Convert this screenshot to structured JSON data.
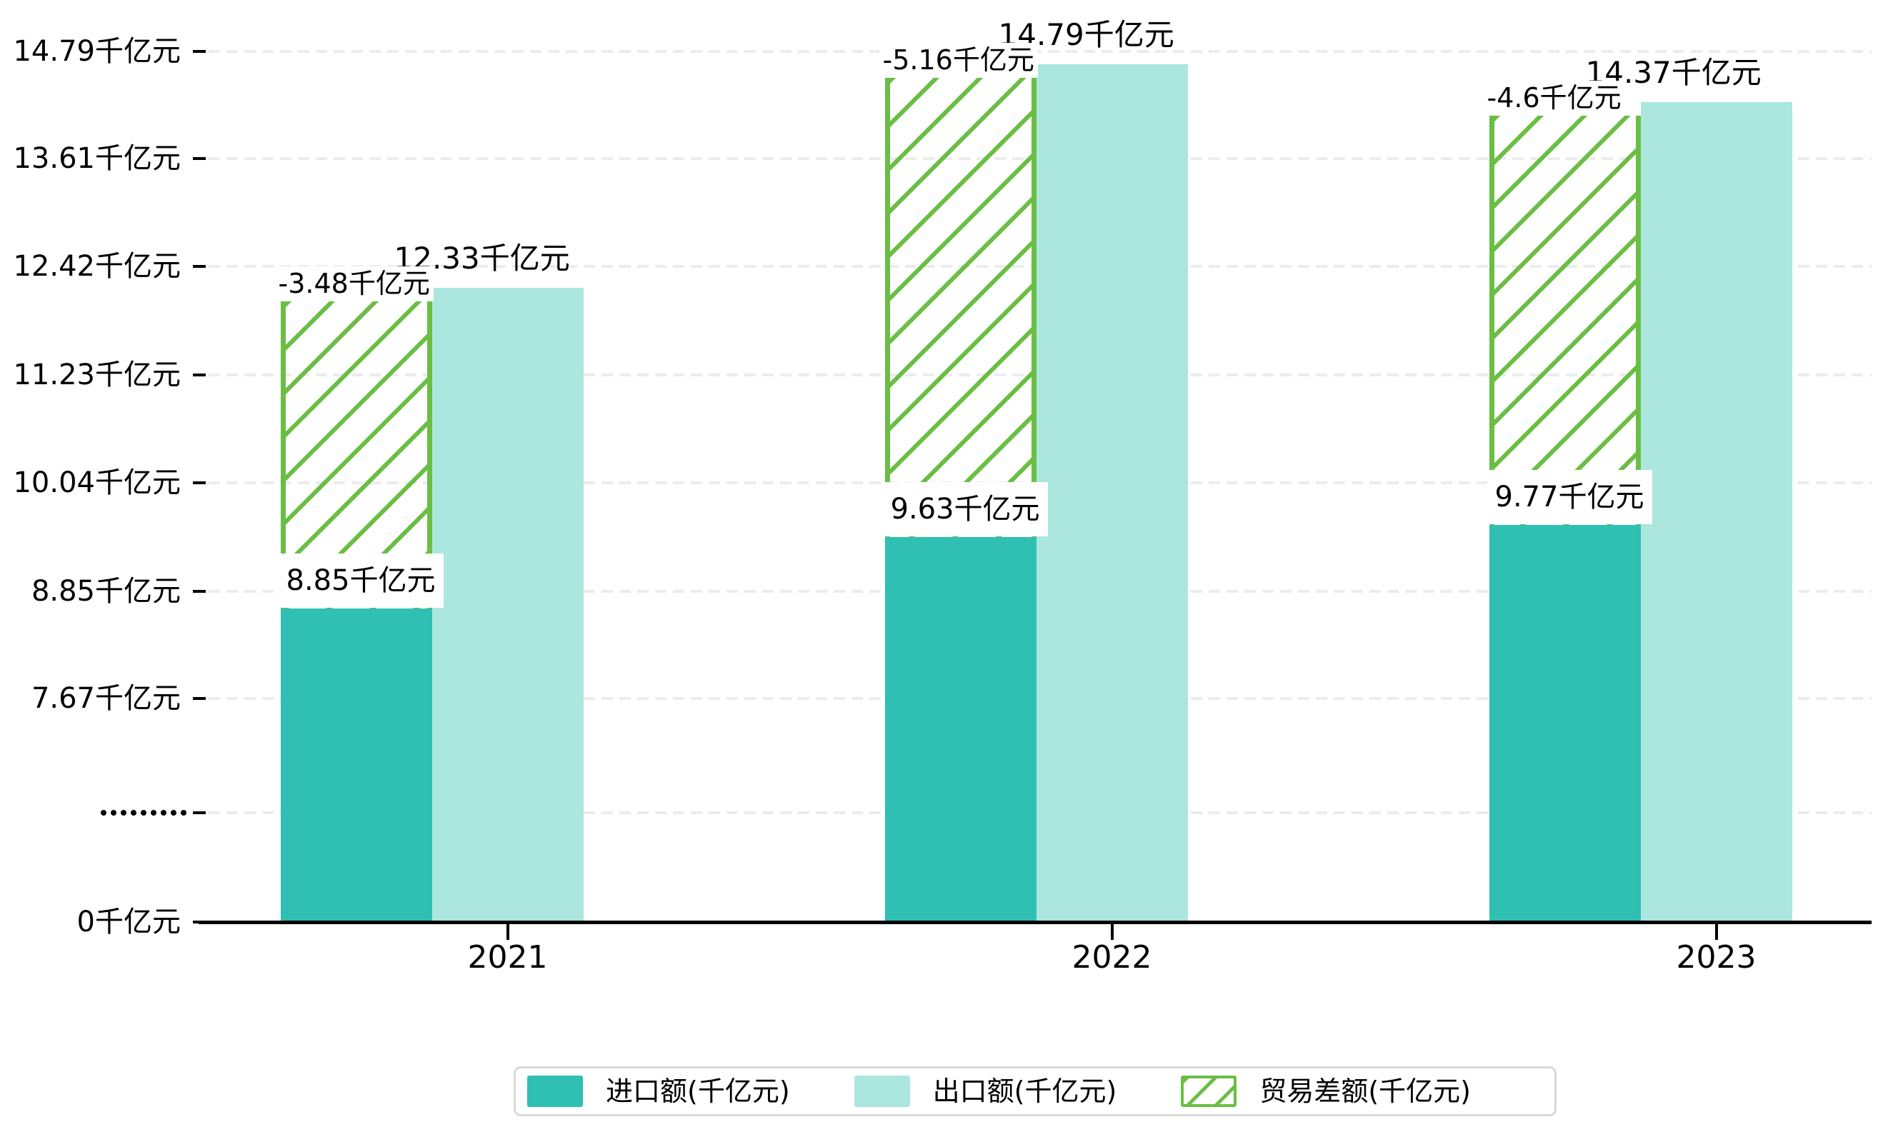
{
  "chart_data": {
    "type": "bar",
    "title": "",
    "unit": "千亿元",
    "categories": [
      "2021",
      "2022",
      "2023"
    ],
    "series": [
      {
        "name": "进口额(千亿元)",
        "role": "import",
        "values": [
          8.85,
          9.63,
          9.77
        ],
        "data_labels": [
          "8.85千亿元",
          "9.63千亿元",
          "9.77千亿元"
        ],
        "color": "#30bfb3",
        "style": "solid"
      },
      {
        "name": "出口额(千亿元)",
        "role": "export",
        "values": [
          12.33,
          14.79,
          14.37
        ],
        "data_labels": [
          "12.33千亿元",
          "14.79千亿元",
          "14.37千亿元"
        ],
        "color": "#abe7de",
        "style": "solid"
      },
      {
        "name": "贸易差额(千亿元)",
        "role": "trade-balance",
        "values": [
          -3.48,
          -5.16,
          -4.6
        ],
        "data_labels": [
          "-3.48千亿元",
          "-5.16千亿元",
          "-4.6千亿元"
        ],
        "color": "#6abe44",
        "style": "hatched"
      }
    ],
    "y_axis": {
      "tick_labels": [
        "14.79千亿元",
        "13.61千亿元",
        "12.42千亿元",
        "11.23千亿元",
        "10.04千亿元",
        "8.85千亿元",
        "7.67千亿元",
        "·········",
        "0千亿元"
      ],
      "tick_values": [
        14.79,
        13.61,
        12.42,
        11.23,
        10.04,
        8.85,
        7.67,
        null,
        0
      ],
      "has_axis_break": true,
      "grid": "dashed"
    },
    "x_axis": {
      "tick_labels": [
        "2021",
        "2022",
        "2023"
      ]
    },
    "legend_position": "bottom",
    "colors": {
      "import": "#30bfb3",
      "export": "#abe7de",
      "balance": "#6abe44",
      "gridline": "#ececec",
      "axis": "#000000",
      "legend_border": "#d9d9d9",
      "background": "#ffffff",
      "label_background": "#ffffff",
      "text": "#000000"
    }
  },
  "legend": {
    "items": [
      {
        "label": "进口额(千亿元)",
        "swatch": "import-color-swatch"
      },
      {
        "label": "出口额(千亿元)",
        "swatch": "export-color-swatch"
      },
      {
        "label": "贸易差额(千亿元)",
        "swatch": "trade-balance-hatched-swatch"
      }
    ]
  }
}
